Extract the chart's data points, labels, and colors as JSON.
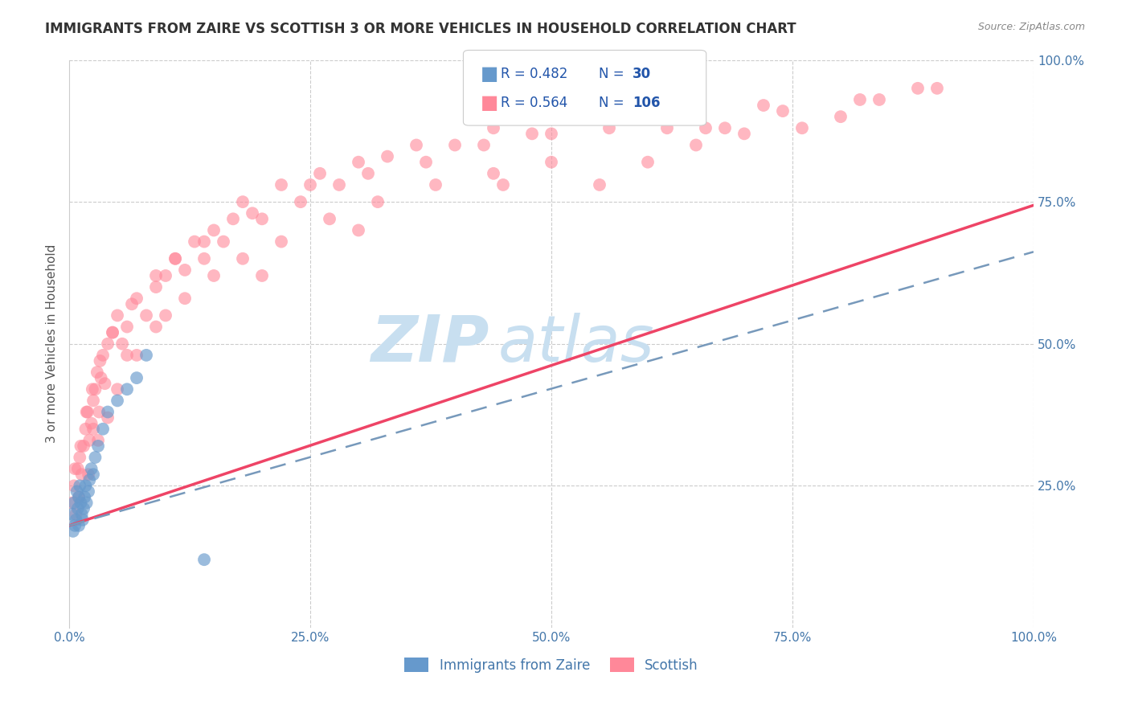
{
  "title": "IMMIGRANTS FROM ZAIRE VS SCOTTISH 3 OR MORE VEHICLES IN HOUSEHOLD CORRELATION CHART",
  "source": "Source: ZipAtlas.com",
  "ylabel": "3 or more Vehicles in Household",
  "xlim": [
    0,
    100
  ],
  "ylim": [
    0,
    100
  ],
  "xticks": [
    0,
    25,
    50,
    75,
    100
  ],
  "yticks": [
    0,
    25,
    50,
    75,
    100
  ],
  "xticklabels": [
    "0.0%",
    "25.0%",
    "50.0%",
    "75.0%",
    "100.0%"
  ],
  "yticklabels": [
    "",
    "25.0%",
    "50.0%",
    "75.0%",
    "100.0%"
  ],
  "blue_color": "#6699CC",
  "pink_color": "#FF8899",
  "pink_line_color": "#EE4466",
  "dashed_line_color": "#7799BB",
  "watermark_color": "#C8DFF0",
  "grid_color": "#CCCCCC",
  "title_color": "#333333",
  "axis_label_color": "#555555",
  "tick_color": "#4477AA",
  "legend_text_color": "#2255AA",
  "source_color": "#888888",
  "blue_scatter_x": [
    0.3,
    0.5,
    0.6,
    0.8,
    0.9,
    1.0,
    1.1,
    1.2,
    1.3,
    1.4,
    1.5,
    1.6,
    1.7,
    1.8,
    2.0,
    2.1,
    2.3,
    2.5,
    2.7,
    3.0,
    3.5,
    4.0,
    5.0,
    6.0,
    7.0,
    8.0,
    0.4,
    0.7,
    1.0,
    14.0
  ],
  "blue_scatter_y": [
    20,
    22,
    18,
    24,
    21,
    23,
    25,
    22,
    20,
    19,
    21,
    23,
    25,
    22,
    24,
    26,
    28,
    27,
    30,
    32,
    35,
    38,
    40,
    42,
    44,
    48,
    17,
    19,
    18,
    12
  ],
  "pink_scatter_x": [
    0.3,
    0.5,
    0.7,
    0.9,
    1.1,
    1.3,
    1.5,
    1.7,
    1.9,
    2.1,
    2.3,
    2.5,
    2.7,
    2.9,
    3.1,
    3.3,
    3.5,
    3.7,
    4.0,
    4.5,
    5.0,
    5.5,
    6.0,
    7.0,
    8.0,
    9.0,
    10.0,
    11.0,
    12.0,
    13.0,
    14.0,
    15.0,
    16.0,
    17.0,
    18.0,
    20.0,
    22.0,
    24.0,
    26.0,
    28.0,
    30.0,
    33.0,
    36.0,
    40.0,
    44.0,
    48.0,
    52.0,
    56.0,
    60.0,
    64.0,
    68.0,
    72.0,
    76.0,
    80.0,
    84.0,
    88.0,
    1.0,
    2.0,
    3.0,
    4.0,
    5.0,
    7.0,
    9.0,
    12.0,
    15.0,
    18.0,
    22.0,
    27.0,
    32.0,
    38.0,
    44.0,
    50.0,
    55.0,
    60.0,
    65.0,
    70.0,
    0.6,
    1.2,
    1.8,
    2.4,
    3.2,
    4.5,
    6.5,
    9.0,
    11.0,
    14.0,
    19.0,
    25.0,
    31.0,
    37.0,
    43.0,
    50.0,
    58.0,
    66.0,
    74.0,
    82.0,
    90.0,
    2.5,
    6.0,
    10.0,
    20.0,
    30.0,
    45.0,
    62.0
  ],
  "pink_scatter_y": [
    22,
    25,
    20,
    28,
    30,
    27,
    32,
    35,
    38,
    33,
    36,
    40,
    42,
    45,
    38,
    44,
    48,
    43,
    50,
    52,
    55,
    50,
    53,
    58,
    55,
    60,
    62,
    65,
    63,
    68,
    65,
    70,
    68,
    72,
    75,
    72,
    78,
    75,
    80,
    78,
    82,
    83,
    85,
    85,
    88,
    87,
    90,
    88,
    92,
    90,
    88,
    92,
    88,
    90,
    93,
    95,
    23,
    27,
    33,
    37,
    42,
    48,
    53,
    58,
    62,
    65,
    68,
    72,
    75,
    78,
    80,
    82,
    78,
    82,
    85,
    87,
    28,
    32,
    38,
    42,
    47,
    52,
    57,
    62,
    65,
    68,
    73,
    78,
    80,
    82,
    85,
    87,
    90,
    88,
    91,
    93,
    95,
    35,
    48,
    55,
    62,
    70,
    78,
    88
  ],
  "blue_reg_slope": 0.482,
  "blue_reg_intercept": 18,
  "pink_reg_slope": 0.564,
  "pink_reg_intercept": 18
}
